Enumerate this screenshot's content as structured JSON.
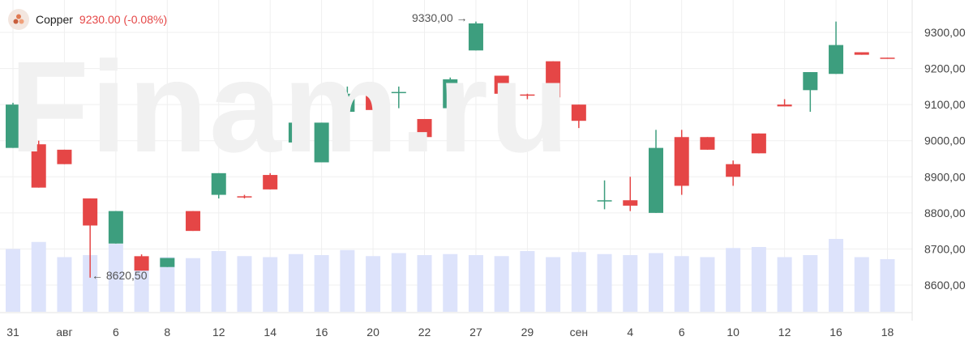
{
  "instrument": {
    "name": "Copper",
    "price": "9230.00",
    "change": "(-0.08%)",
    "logo_icon": "copper-logo-icon"
  },
  "watermark": "Finam.ru",
  "annotations": {
    "high_label": "9330,00",
    "low_label": "8620,50"
  },
  "colors": {
    "up": "#3d9e7e",
    "down": "#e54646",
    "volume": "#dde3fb",
    "grid": "#efefef",
    "axis_text": "#444444"
  },
  "chart_data": {
    "type": "candlestick",
    "title": "",
    "xlabel": "",
    "ylabel": "",
    "ylim": [
      8530,
      9390
    ],
    "grid": true,
    "y_ticks": [
      "9300,00",
      "9200,00",
      "9100,00",
      "9000,00",
      "8900,00",
      "8800,00",
      "8700,00",
      "8600,00"
    ],
    "x_tick_labels": [
      "31",
      "авг",
      "6",
      "8",
      "12",
      "14",
      "16",
      "20",
      "22",
      "27",
      "29",
      "сен",
      "4",
      "6",
      "10",
      "12",
      "16",
      "18"
    ],
    "candles": [
      {
        "x": 0,
        "open": 8980,
        "high": 9105,
        "low": 8980,
        "close": 9100,
        "volume": 0.62
      },
      {
        "x": 1,
        "open": 8990,
        "high": 9000,
        "low": 8870,
        "close": 8870,
        "volume": 0.69
      },
      {
        "x": 2,
        "open": 8975,
        "high": 8975,
        "low": 8935,
        "close": 8935,
        "volume": 0.54
      },
      {
        "x": 3,
        "open": 8840,
        "high": 8840,
        "low": 8620.5,
        "close": 8765,
        "volume": 0.56
      },
      {
        "x": 4,
        "open": 8715,
        "high": 8805,
        "low": 8715,
        "close": 8805,
        "volume": 0.67
      },
      {
        "x": 5,
        "open": 8680,
        "high": 8685,
        "low": 8640,
        "close": 8640,
        "volume": 0.53
      },
      {
        "x": 6,
        "open": 8650,
        "high": 8675,
        "low": 8650,
        "close": 8675,
        "volume": 0.54
      },
      {
        "x": 7,
        "open": 8805,
        "high": 8805,
        "low": 8750,
        "close": 8750,
        "volume": 0.53
      },
      {
        "x": 8,
        "open": 8850,
        "high": 8910,
        "low": 8840,
        "close": 8910,
        "volume": 0.6
      },
      {
        "x": 9,
        "open": 8846,
        "high": 8850,
        "low": 8840,
        "close": 8844,
        "volume": 0.55
      },
      {
        "x": 10,
        "open": 8905,
        "high": 8910,
        "low": 8865,
        "close": 8865,
        "volume": 0.54
      },
      {
        "x": 11,
        "open": 8995,
        "high": 9050,
        "low": 8995,
        "close": 9050,
        "volume": 0.57
      },
      {
        "x": 12,
        "open": 8940,
        "high": 9050,
        "low": 8940,
        "close": 9050,
        "volume": 0.56
      },
      {
        "x": 13,
        "open": 9080,
        "high": 9150,
        "low": 9080,
        "close": 9130,
        "volume": 0.61
      },
      {
        "x": 14,
        "open": 9150,
        "high": 9150,
        "low": 9085,
        "close": 9085,
        "volume": 0.55
      },
      {
        "x": 15,
        "open": 9135,
        "high": 9150,
        "low": 9090,
        "close": 9135,
        "volume": 0.58
      },
      {
        "x": 16,
        "open": 9060,
        "high": 9060,
        "low": 9010,
        "close": 9010,
        "volume": 0.56
      },
      {
        "x": 17,
        "open": 9090,
        "high": 9175,
        "low": 9075,
        "close": 9170,
        "volume": 0.57
      },
      {
        "x": 18,
        "open": 9250,
        "high": 9330,
        "low": 9250,
        "close": 9325,
        "volume": 0.56
      },
      {
        "x": 19,
        "open": 9180,
        "high": 9180,
        "low": 9130,
        "close": 9130,
        "volume": 0.55
      },
      {
        "x": 20,
        "open": 9128,
        "high": 9130,
        "low": 9115,
        "close": 9125,
        "volume": 0.6
      },
      {
        "x": 21,
        "open": 9220,
        "high": 9220,
        "low": 9120,
        "close": 9120,
        "volume": 0.54
      },
      {
        "x": 22,
        "open": 9100,
        "high": 9100,
        "low": 9035,
        "close": 9055,
        "volume": 0.59
      },
      {
        "x": 23,
        "open": 8835,
        "high": 8890,
        "low": 8810,
        "close": 8835,
        "volume": 0.57
      },
      {
        "x": 24,
        "open": 8835,
        "high": 8900,
        "low": 8805,
        "close": 8820,
        "volume": 0.56
      },
      {
        "x": 25,
        "open": 8800,
        "high": 9030,
        "low": 8800,
        "close": 8980,
        "volume": 0.58
      },
      {
        "x": 26,
        "open": 9010,
        "high": 9030,
        "low": 8850,
        "close": 8875,
        "volume": 0.55
      },
      {
        "x": 27,
        "open": 9010,
        "high": 9010,
        "low": 8975,
        "close": 8975,
        "volume": 0.54
      },
      {
        "x": 28,
        "open": 8935,
        "high": 8945,
        "low": 8875,
        "close": 8900,
        "volume": 0.63
      },
      {
        "x": 29,
        "open": 9020,
        "high": 9020,
        "low": 8965,
        "close": 8965,
        "volume": 0.64
      },
      {
        "x": 30,
        "open": 9100,
        "high": 9115,
        "low": 9095,
        "close": 9095,
        "volume": 0.54
      },
      {
        "x": 31,
        "open": 9140,
        "high": 9190,
        "low": 9080,
        "close": 9190,
        "volume": 0.56
      },
      {
        "x": 32,
        "open": 9185,
        "high": 9330,
        "low": 9185,
        "close": 9265,
        "volume": 0.72
      },
      {
        "x": 33,
        "open": 9245,
        "high": 9245,
        "low": 9238,
        "close": 9238,
        "volume": 0.54
      },
      {
        "x": 34,
        "open": 9230,
        "high": 9230,
        "low": 9228,
        "close": 9228,
        "volume": 0.52
      }
    ]
  }
}
